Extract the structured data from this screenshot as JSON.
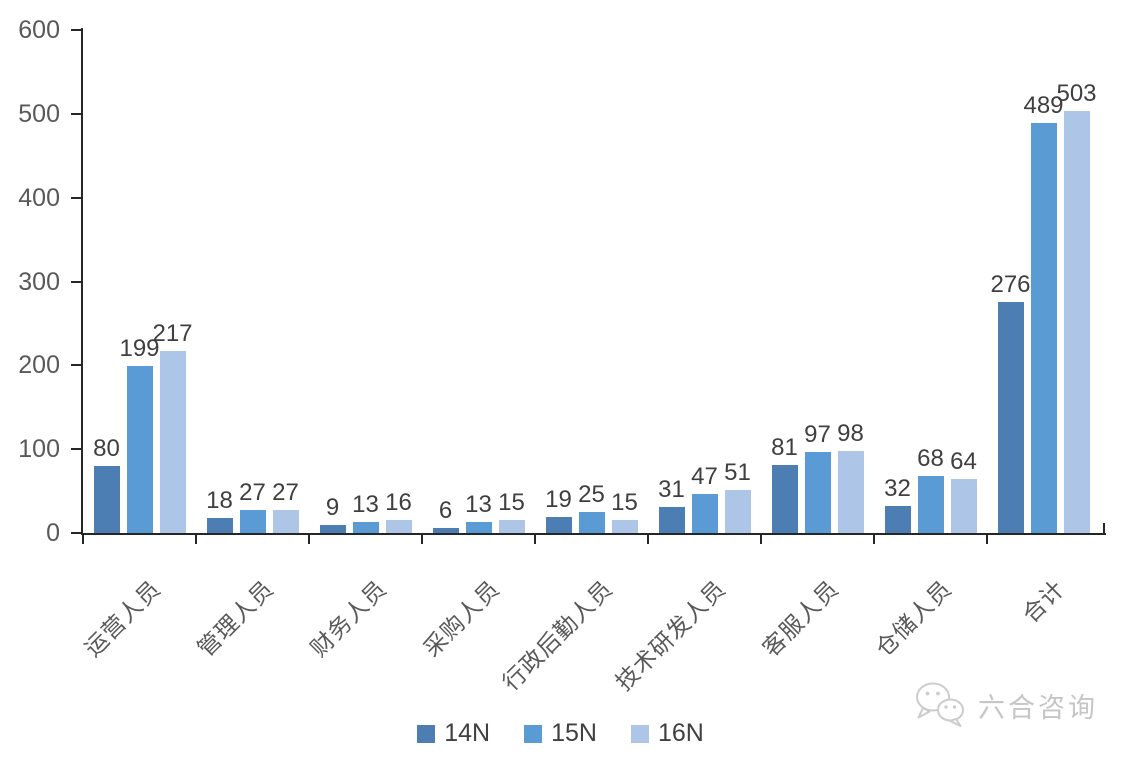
{
  "chart_data": {
    "type": "bar",
    "title": "",
    "categories": [
      "运营人员",
      "管理人员",
      "财务人员",
      "采购人员",
      "行政后勤人员",
      "技术研发人员",
      "客服人员",
      "仓储人员",
      "合计"
    ],
    "series": [
      {
        "name": "14N",
        "color": "#4d7eb3",
        "values": [
          80,
          18,
          9,
          6,
          19,
          31,
          81,
          32,
          276
        ]
      },
      {
        "name": "15N",
        "color": "#5b9bd5",
        "values": [
          199,
          27,
          13,
          13,
          25,
          47,
          97,
          68,
          489
        ]
      },
      {
        "name": "16N",
        "color": "#adc6e8",
        "values": [
          217,
          27,
          16,
          15,
          15,
          51,
          98,
          64,
          503
        ]
      }
    ],
    "y_axis": {
      "min": 0,
      "max": 600,
      "tick_interval": 100,
      "tick_labels": [
        "600",
        "500",
        "400",
        "300",
        "200",
        "100",
        "0"
      ]
    },
    "xlabel": "",
    "ylabel": "",
    "grid": false,
    "legend_position": "bottom",
    "data_labels": true
  },
  "watermark": {
    "text": "六合咨询",
    "icon": "wechat-icon"
  },
  "colors": {
    "axis": "#262626",
    "axis_tick_label": "#595959",
    "value_label": "#3f3f3f",
    "category_label": "#595959",
    "watermark": "#c6c6c6"
  }
}
